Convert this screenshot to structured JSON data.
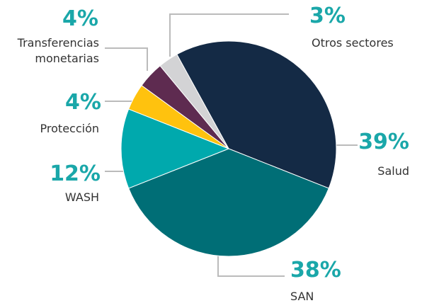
{
  "chart_data": {
    "type": "pie",
    "categories": [
      "Salud",
      "SAN",
      "WASH",
      "Protección",
      "Transferencias monetarias",
      "Otros sectores"
    ],
    "values": [
      39,
      38,
      12,
      4,
      4,
      3
    ],
    "value_labels": [
      "39%",
      "38%",
      "12%",
      "4%",
      "4%",
      "3%"
    ],
    "colors": [
      "#142a45",
      "#006e76",
      "#00a9ad",
      "#ffc20e",
      "#5e2b50",
      "#d3d3d5"
    ]
  }
}
